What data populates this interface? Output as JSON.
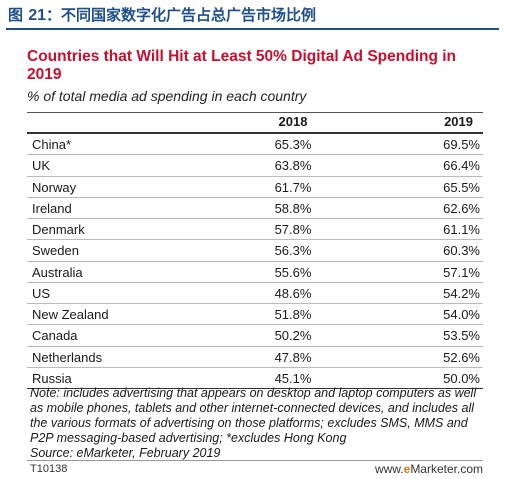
{
  "figure": {
    "label": "图",
    "number": "21",
    "caption": "：不同国家数字化广告占总广告市场比例"
  },
  "chart_data": {
    "type": "table",
    "title": "Countries that Will Hit at Least 50% Digital Ad Spending in 2019",
    "subtitle": "% of total media ad spending in each country",
    "columns": [
      "2018",
      "2019"
    ],
    "rows": [
      {
        "country": "China*",
        "v2018": "65.3%",
        "v2019": "69.5%"
      },
      {
        "country": "UK",
        "v2018": "63.8%",
        "v2019": "66.4%"
      },
      {
        "country": "Norway",
        "v2018": "61.7%",
        "v2019": "65.5%"
      },
      {
        "country": "Ireland",
        "v2018": "58.8%",
        "v2019": "62.6%"
      },
      {
        "country": "Denmark",
        "v2018": "57.8%",
        "v2019": "61.1%"
      },
      {
        "country": "Sweden",
        "v2018": "56.3%",
        "v2019": "60.3%"
      },
      {
        "country": "Australia",
        "v2018": "55.6%",
        "v2019": "57.1%"
      },
      {
        "country": "US",
        "v2018": "48.6%",
        "v2019": "54.2%"
      },
      {
        "country": "New Zealand",
        "v2018": "51.8%",
        "v2019": "54.0%"
      },
      {
        "country": "Canada",
        "v2018": "50.2%",
        "v2019": "53.5%"
      },
      {
        "country": "Netherlands",
        "v2018": "47.8%",
        "v2019": "52.6%"
      },
      {
        "country": "Russia",
        "v2018": "45.1%",
        "v2019": "50.0%"
      }
    ],
    "note": "Note: includes advertising that appears on desktop and laptop computers as well as mobile phones, tablets and other internet-connected devices, and includes all the various formats of advertising on those platforms; excludes SMS, MMS and P2P messaging-based advertising; *excludes Hong Kong",
    "source": "Source: eMarketer, February 2019"
  },
  "footer": {
    "id": "T10138",
    "brand_prefix": "www.",
    "brand_mark": "e",
    "brand_suffix": "Marketer.com"
  },
  "colors": {
    "caption": "#1f4f8b",
    "title": "#c8102e",
    "brand_accent": "#e07a10"
  }
}
